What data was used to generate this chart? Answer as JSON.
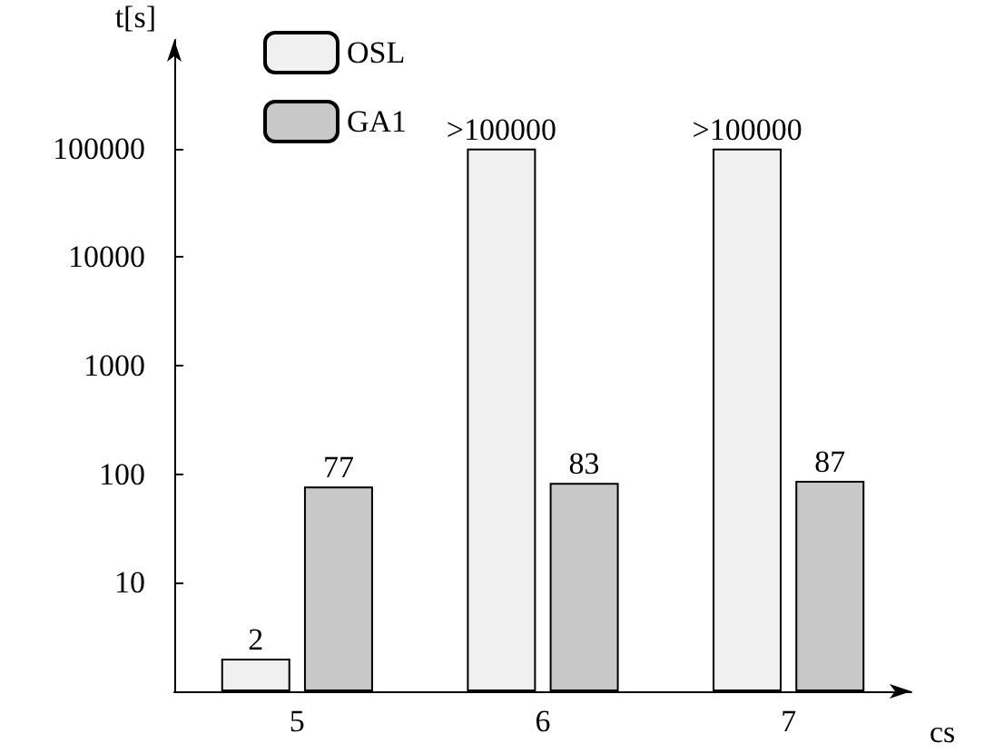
{
  "chart_data": {
    "type": "bar",
    "xlabel": "cs",
    "ylabel": "t[s]",
    "categories": [
      "5",
      "6",
      "7"
    ],
    "series": [
      {
        "name": "OSL",
        "color": "#f0f0f0",
        "values": [
          2,
          100000,
          100000
        ],
        "value_labels": [
          "2",
          ">100000",
          ">100000"
        ]
      },
      {
        "name": "GA1",
        "color": "#c8c8c8",
        "values": [
          77,
          83,
          87
        ],
        "value_labels": [
          "77",
          "83",
          "87"
        ]
      }
    ],
    "log": "y",
    "ylim": [
      1,
      1000000
    ],
    "yticks": [
      10,
      100,
      1000,
      10000,
      100000
    ],
    "grid": false,
    "legend": "top left"
  }
}
